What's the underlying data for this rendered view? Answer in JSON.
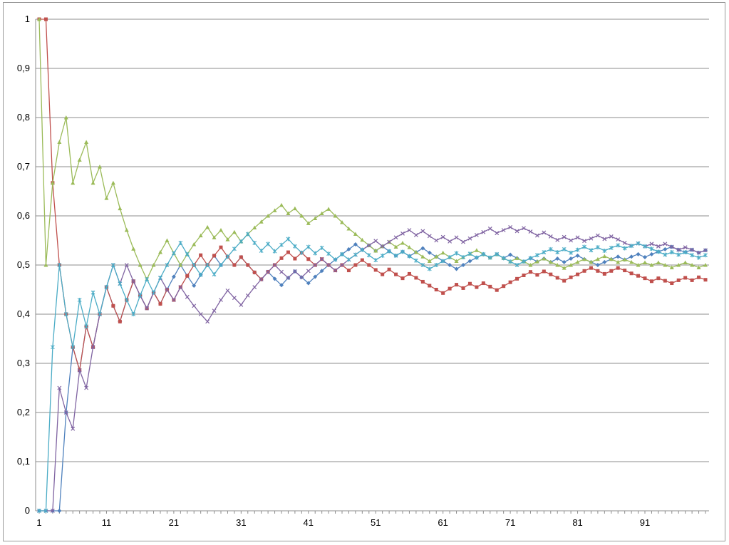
{
  "chart_data": {
    "type": "line",
    "title": "",
    "xlabel": "",
    "ylabel": "",
    "ylim": [
      0,
      1
    ],
    "grid": true,
    "legend": "none",
    "y_ticks": [
      "0",
      "0,1",
      "0,2",
      "0,3",
      "0,4",
      "0,5",
      "0,6",
      "0,7",
      "0,8",
      "0,9",
      "1"
    ],
    "x_ticks": [
      "1",
      "11",
      "21",
      "31",
      "41",
      "51",
      "61",
      "71",
      "81",
      "91"
    ],
    "x": [
      1,
      2,
      3,
      4,
      5,
      6,
      7,
      8,
      9,
      10,
      11,
      12,
      13,
      14,
      15,
      16,
      17,
      18,
      19,
      20,
      21,
      22,
      23,
      24,
      25,
      26,
      27,
      28,
      29,
      30,
      31,
      32,
      33,
      34,
      35,
      36,
      37,
      38,
      39,
      40,
      41,
      42,
      43,
      44,
      45,
      46,
      47,
      48,
      49,
      50,
      51,
      52,
      53,
      54,
      55,
      56,
      57,
      58,
      59,
      60,
      61,
      62,
      63,
      64,
      65,
      66,
      67,
      68,
      69,
      70,
      71,
      72,
      73,
      74,
      75,
      76,
      77,
      78,
      79,
      80,
      81,
      82,
      83,
      84,
      85,
      86,
      87,
      88,
      89,
      90,
      91,
      92,
      93,
      94,
      95,
      96,
      97,
      98,
      99,
      100
    ],
    "series": [
      {
        "color": "#4f81bd",
        "marker": "diamond",
        "values": [
          0,
          0,
          0,
          0,
          0.2,
          0.333,
          0.286,
          0.375,
          0.333,
          0.4,
          0.455,
          0.417,
          0.385,
          0.429,
          0.467,
          0.438,
          0.412,
          0.444,
          0.421,
          0.45,
          0.476,
          0.5,
          0.478,
          0.458,
          0.48,
          0.5,
          0.519,
          0.5,
          0.517,
          0.5,
          0.516,
          0.5,
          0.485,
          0.471,
          0.486,
          0.472,
          0.459,
          0.474,
          0.487,
          0.475,
          0.463,
          0.476,
          0.488,
          0.5,
          0.511,
          0.522,
          0.532,
          0.542,
          0.531,
          0.54,
          0.529,
          0.538,
          0.528,
          0.519,
          0.527,
          0.518,
          0.526,
          0.534,
          0.525,
          0.517,
          0.508,
          0.5,
          0.492,
          0.5,
          0.508,
          0.515,
          0.522,
          0.515,
          0.522,
          0.514,
          0.521,
          0.514,
          0.507,
          0.514,
          0.507,
          0.513,
          0.506,
          0.513,
          0.506,
          0.513,
          0.519,
          0.512,
          0.506,
          0.5,
          0.506,
          0.512,
          0.517,
          0.511,
          0.517,
          0.522,
          0.516,
          0.522,
          0.527,
          0.532,
          0.537,
          0.531,
          0.526,
          0.531,
          0.525,
          0.53
        ]
      },
      {
        "color": "#c0504d",
        "marker": "square",
        "values": [
          1,
          1,
          0.667,
          0.5,
          0.4,
          0.333,
          0.286,
          0.375,
          0.333,
          0.4,
          0.455,
          0.417,
          0.385,
          0.429,
          0.467,
          0.438,
          0.412,
          0.444,
          0.421,
          0.45,
          0.429,
          0.455,
          0.478,
          0.5,
          0.52,
          0.5,
          0.519,
          0.536,
          0.517,
          0.5,
          0.516,
          0.5,
          0.485,
          0.471,
          0.486,
          0.5,
          0.514,
          0.526,
          0.513,
          0.525,
          0.512,
          0.5,
          0.512,
          0.5,
          0.489,
          0.5,
          0.489,
          0.5,
          0.51,
          0.5,
          0.49,
          0.481,
          0.491,
          0.481,
          0.473,
          0.482,
          0.474,
          0.466,
          0.458,
          0.45,
          0.443,
          0.452,
          0.46,
          0.453,
          0.462,
          0.455,
          0.463,
          0.456,
          0.449,
          0.457,
          0.465,
          0.472,
          0.479,
          0.486,
          0.48,
          0.487,
          0.481,
          0.474,
          0.468,
          0.475,
          0.481,
          0.488,
          0.494,
          0.488,
          0.482,
          0.488,
          0.494,
          0.489,
          0.483,
          0.478,
          0.473,
          0.467,
          0.473,
          0.468,
          0.463,
          0.469,
          0.474,
          0.469,
          0.475,
          0.47
        ]
      },
      {
        "color": "#9bbb59",
        "marker": "triangle",
        "values": [
          1,
          0.5,
          0.667,
          0.75,
          0.8,
          0.667,
          0.714,
          0.75,
          0.667,
          0.7,
          0.636,
          0.667,
          0.615,
          0.571,
          0.533,
          0.5,
          0.471,
          0.5,
          0.526,
          0.55,
          0.524,
          0.5,
          0.522,
          0.542,
          0.56,
          0.577,
          0.556,
          0.571,
          0.552,
          0.567,
          0.548,
          0.563,
          0.576,
          0.588,
          0.6,
          0.611,
          0.622,
          0.605,
          0.615,
          0.6,
          0.585,
          0.595,
          0.605,
          0.614,
          0.6,
          0.587,
          0.574,
          0.563,
          0.551,
          0.54,
          0.529,
          0.538,
          0.547,
          0.537,
          0.545,
          0.536,
          0.526,
          0.517,
          0.508,
          0.517,
          0.525,
          0.516,
          0.508,
          0.516,
          0.523,
          0.53,
          0.522,
          0.515,
          0.522,
          0.514,
          0.507,
          0.514,
          0.507,
          0.5,
          0.507,
          0.513,
          0.506,
          0.5,
          0.494,
          0.5,
          0.506,
          0.512,
          0.506,
          0.512,
          0.518,
          0.512,
          0.506,
          0.511,
          0.506,
          0.5,
          0.505,
          0.5,
          0.505,
          0.5,
          0.495,
          0.5,
          0.505,
          0.5,
          0.495,
          0.5
        ]
      },
      {
        "color": "#8064a2",
        "marker": "x",
        "values": [
          0,
          0,
          0,
          0.25,
          0.2,
          0.167,
          0.286,
          0.25,
          0.333,
          0.4,
          0.455,
          0.5,
          0.462,
          0.5,
          0.467,
          0.438,
          0.412,
          0.444,
          0.474,
          0.45,
          0.429,
          0.455,
          0.435,
          0.417,
          0.4,
          0.385,
          0.407,
          0.429,
          0.448,
          0.433,
          0.419,
          0.438,
          0.455,
          0.471,
          0.486,
          0.5,
          0.486,
          0.474,
          0.487,
          0.475,
          0.488,
          0.5,
          0.512,
          0.5,
          0.489,
          0.5,
          0.511,
          0.521,
          0.531,
          0.54,
          0.549,
          0.538,
          0.547,
          0.556,
          0.564,
          0.571,
          0.561,
          0.569,
          0.559,
          0.55,
          0.557,
          0.548,
          0.556,
          0.547,
          0.554,
          0.561,
          0.567,
          0.574,
          0.565,
          0.571,
          0.577,
          0.569,
          0.575,
          0.568,
          0.56,
          0.566,
          0.558,
          0.551,
          0.557,
          0.55,
          0.556,
          0.549,
          0.554,
          0.56,
          0.553,
          0.558,
          0.552,
          0.545,
          0.539,
          0.544,
          0.538,
          0.543,
          0.538,
          0.543,
          0.537,
          0.531,
          0.536,
          0.531,
          0.525,
          0.53
        ]
      },
      {
        "color": "#4bacc6",
        "marker": "star",
        "values": [
          0,
          0,
          0.333,
          0.5,
          0.4,
          0.333,
          0.429,
          0.375,
          0.444,
          0.4,
          0.455,
          0.5,
          0.462,
          0.429,
          0.4,
          0.438,
          0.471,
          0.444,
          0.474,
          0.5,
          0.524,
          0.545,
          0.522,
          0.5,
          0.48,
          0.5,
          0.481,
          0.5,
          0.517,
          0.533,
          0.548,
          0.563,
          0.545,
          0.529,
          0.543,
          0.528,
          0.541,
          0.553,
          0.538,
          0.525,
          0.537,
          0.524,
          0.535,
          0.523,
          0.511,
          0.522,
          0.511,
          0.521,
          0.531,
          0.52,
          0.51,
          0.519,
          0.528,
          0.519,
          0.527,
          0.518,
          0.509,
          0.5,
          0.492,
          0.5,
          0.508,
          0.516,
          0.524,
          0.516,
          0.523,
          0.515,
          0.522,
          0.515,
          0.522,
          0.514,
          0.507,
          0.5,
          0.507,
          0.514,
          0.52,
          0.526,
          0.532,
          0.526,
          0.532,
          0.525,
          0.531,
          0.537,
          0.53,
          0.536,
          0.529,
          0.535,
          0.54,
          0.534,
          0.539,
          0.544,
          0.538,
          0.533,
          0.527,
          0.521,
          0.526,
          0.521,
          0.526,
          0.52,
          0.515,
          0.52
        ]
      }
    ]
  }
}
